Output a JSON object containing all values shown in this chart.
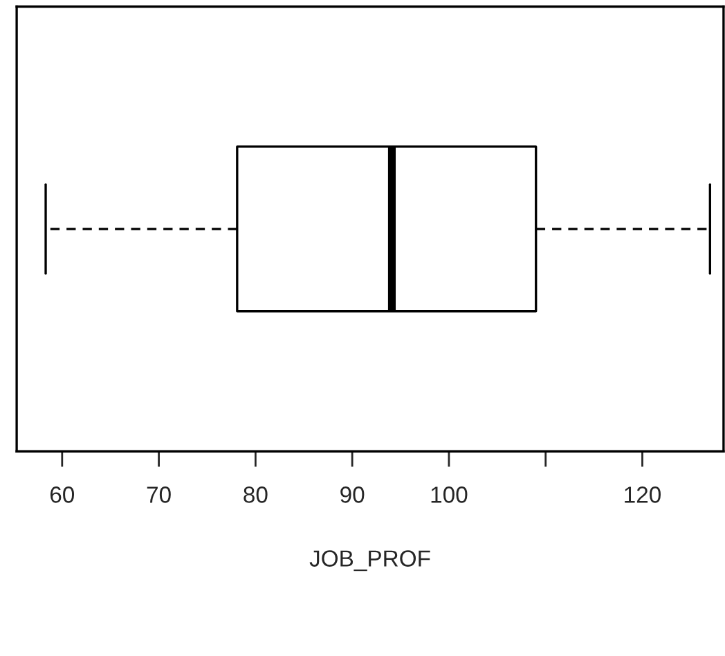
{
  "chart_data": {
    "type": "box",
    "orientation": "horizontal",
    "xlabel": "JOB_PROF",
    "categories": [
      null
    ],
    "boxes": [
      {
        "low": 58.3,
        "q1": 78.1,
        "median": 94.1,
        "q3": 109.0,
        "high": 127.0
      }
    ],
    "xlim": [
      55.3,
      128.4
    ],
    "xticks": [
      60,
      70,
      80,
      90,
      100,
      {
        "value": 110,
        "label": null
      },
      120
    ],
    "grid": false,
    "legend": false
  }
}
